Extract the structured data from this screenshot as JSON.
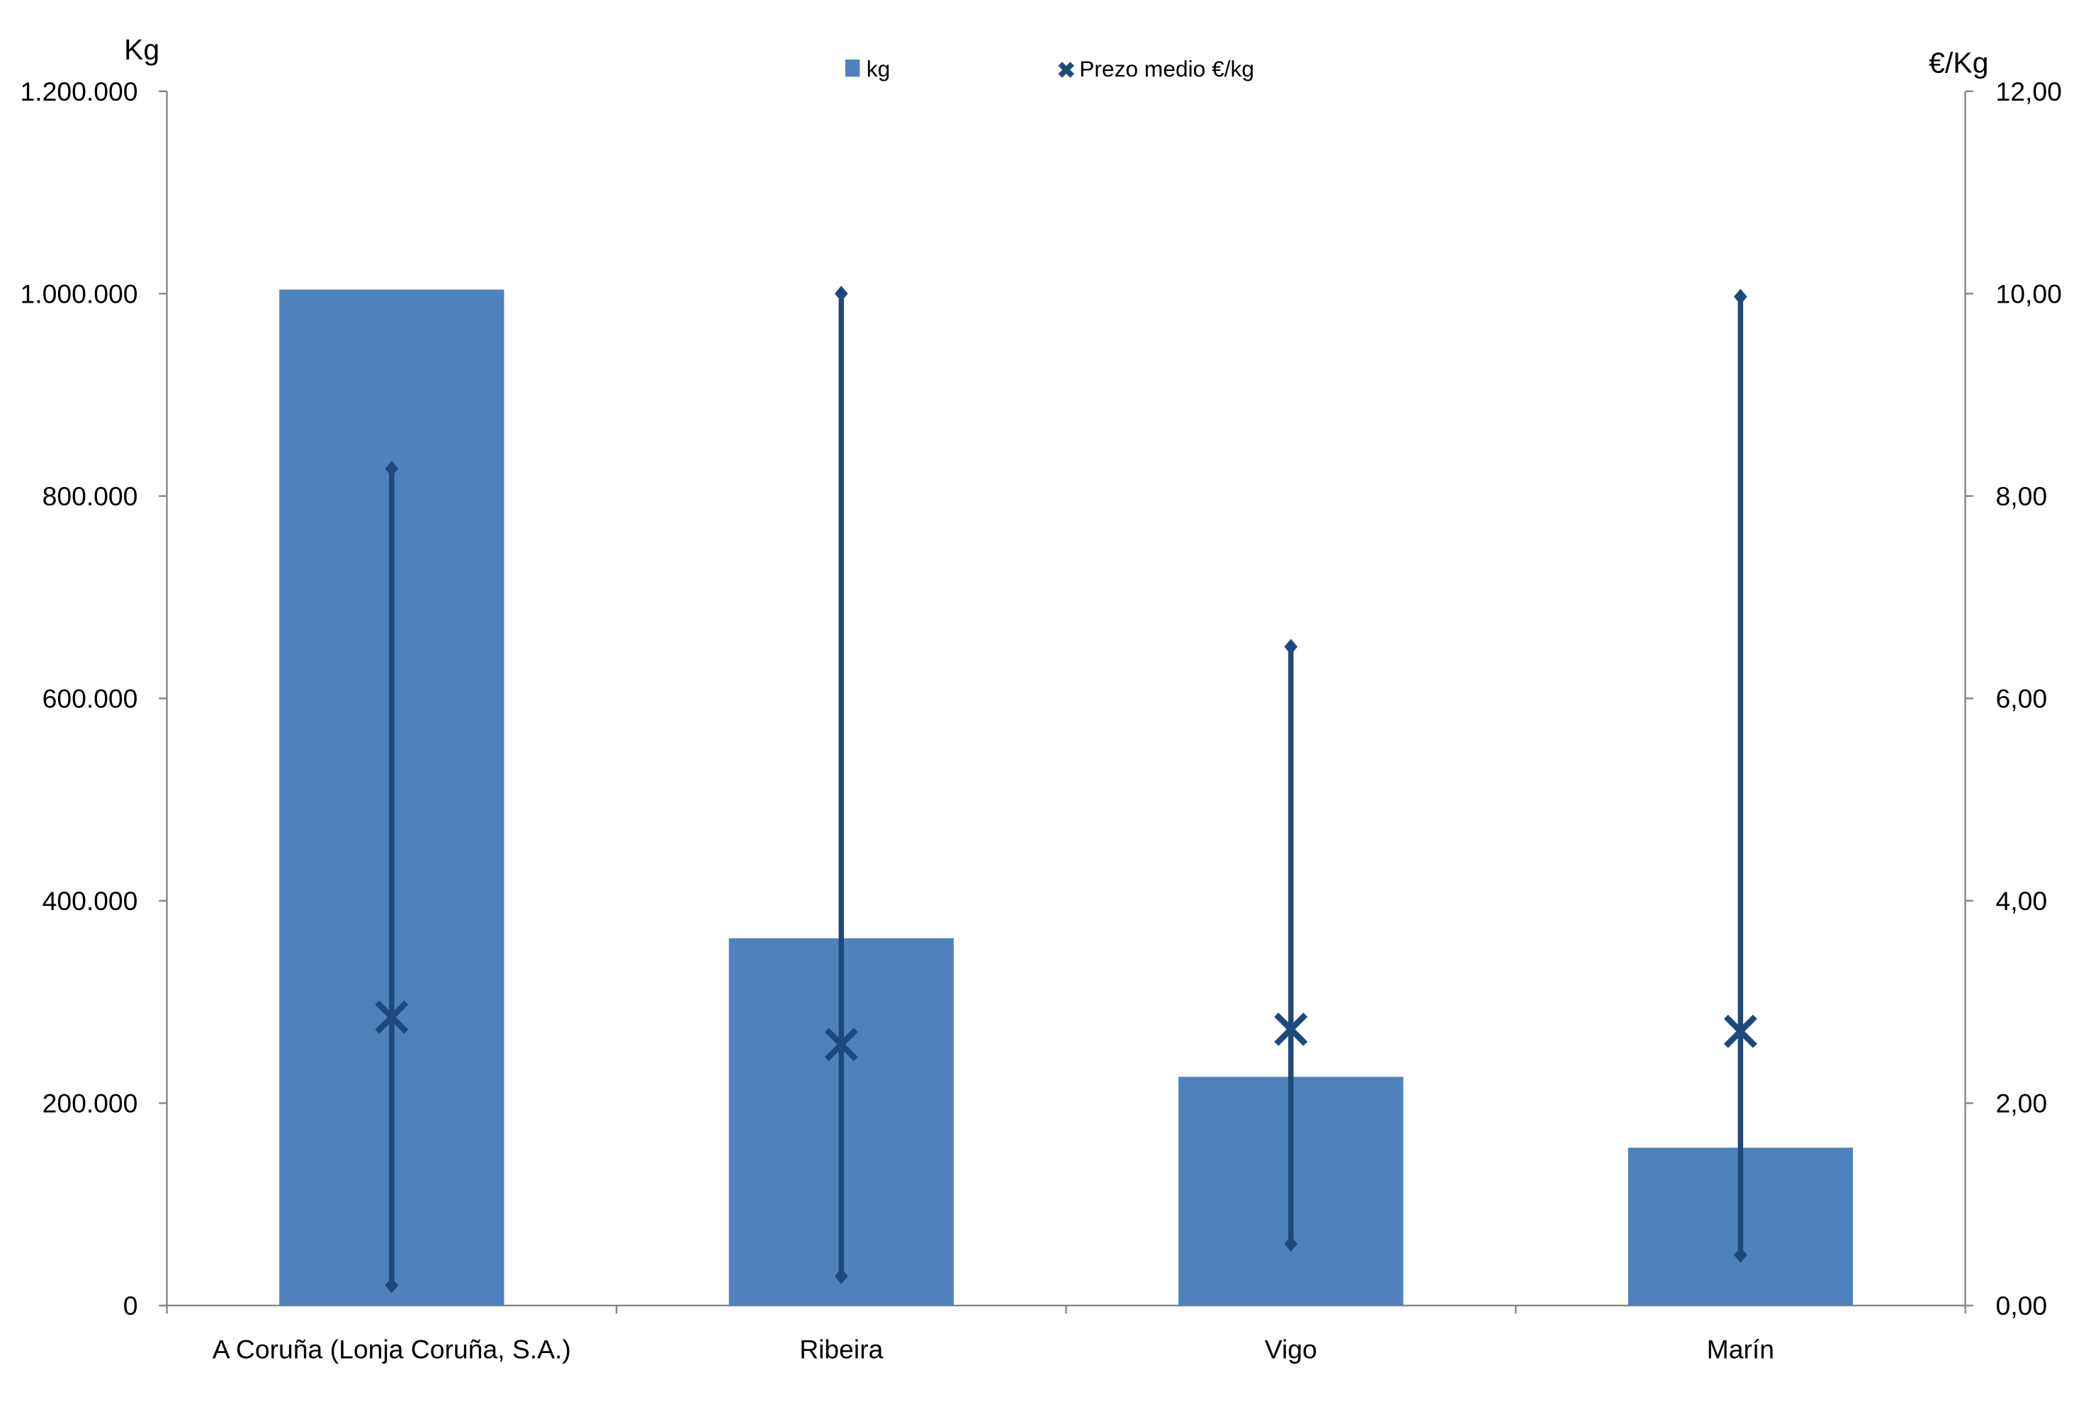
{
  "chart_data": {
    "type": "bar",
    "categories": [
      "A Coruña (Lonja Coruña, S.A.)",
      "Ribeira",
      "Vigo",
      "Marín"
    ],
    "left_axis": {
      "label": "Kg",
      "ylim": [
        0,
        1200000
      ],
      "ticks": [
        0,
        200000,
        400000,
        600000,
        800000,
        1000000,
        1200000
      ],
      "tick_labels": [
        "0",
        "200.000",
        "400.000",
        "600.000",
        "800.000",
        "1.000.000",
        "1.200.000"
      ]
    },
    "right_axis": {
      "label": "€/Kg",
      "ylim": [
        0,
        12
      ],
      "ticks": [
        0,
        2,
        4,
        6,
        8,
        10,
        12
      ],
      "tick_labels": [
        "0,00",
        "2,00",
        "4,00",
        "6,00",
        "8,00",
        "10,00",
        "12,00"
      ]
    },
    "series": [
      {
        "name": "kg",
        "type": "bar",
        "axis": "left",
        "color": "#4F81BD",
        "values": [
          1004000,
          363000,
          226000,
          156000
        ]
      },
      {
        "name": "Prezo medio €/kg",
        "type": "high-low-average",
        "axis": "right",
        "color": "#1F497D",
        "average": [
          2.85,
          2.58,
          2.73,
          2.71
        ],
        "max": [
          8.27,
          10.0,
          6.51,
          9.97
        ],
        "min": [
          0.2,
          0.29,
          0.61,
          0.5
        ]
      }
    ],
    "legend": {
      "position": "top",
      "items": [
        "kg",
        "Prezo medio €/kg"
      ]
    },
    "grid": false
  }
}
